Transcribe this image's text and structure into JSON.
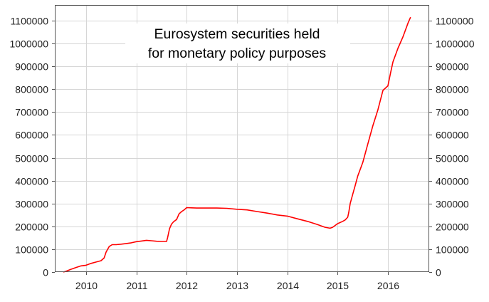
{
  "chart_data": {
    "type": "line",
    "title": [
      "Eurosystem securities held",
      "for monetary policy purposes"
    ],
    "xlabel": "",
    "ylabel": "",
    "xlim": [
      2009.38,
      2016.82
    ],
    "ylim": [
      0,
      1100000
    ],
    "x_ticks": [
      2010,
      2011,
      2012,
      2013,
      2014,
      2015,
      2016
    ],
    "y_ticks": [
      0,
      100000,
      200000,
      300000,
      400000,
      500000,
      600000,
      700000,
      800000,
      900000,
      1000000,
      1100000
    ],
    "grid": true,
    "line_color": "#ff0000",
    "series": [
      {
        "name": "Eurosystem securities held for monetary policy purposes",
        "x": [
          2009.55,
          2009.62,
          2009.7,
          2009.8,
          2009.9,
          2010.0,
          2010.1,
          2010.2,
          2010.3,
          2010.36,
          2010.4,
          2010.46,
          2010.52,
          2010.6,
          2010.7,
          2010.8,
          2010.9,
          2011.0,
          2011.1,
          2011.2,
          2011.3,
          2011.4,
          2011.5,
          2011.6,
          2011.62,
          2011.66,
          2011.7,
          2011.74,
          2011.8,
          2011.85,
          2011.9,
          2011.95,
          2012.0,
          2012.1,
          2012.2,
          2012.4,
          2012.6,
          2012.8,
          2013.0,
          2013.2,
          2013.4,
          2013.6,
          2013.8,
          2014.0,
          2014.2,
          2014.4,
          2014.6,
          2014.75,
          2014.85,
          2014.9,
          2015.0,
          2015.1,
          2015.15,
          2015.2,
          2015.22,
          2015.25,
          2015.3,
          2015.35,
          2015.4,
          2015.5,
          2015.6,
          2015.7,
          2015.8,
          2015.9,
          2016.0,
          2016.05,
          2016.1,
          2016.2,
          2016.3,
          2016.4,
          2016.45
        ],
        "values": [
          0,
          5000,
          12000,
          20000,
          27000,
          30000,
          38000,
          44000,
          50000,
          62000,
          88000,
          112000,
          120000,
          120000,
          122000,
          125000,
          128000,
          133000,
          136000,
          139000,
          137000,
          135000,
          134000,
          134000,
          150000,
          190000,
          210000,
          220000,
          230000,
          255000,
          265000,
          272000,
          282000,
          281000,
          280000,
          280000,
          280000,
          279000,
          275000,
          272000,
          265000,
          258000,
          250000,
          245000,
          233000,
          222000,
          208000,
          196000,
          192000,
          196000,
          212000,
          222000,
          228000,
          240000,
          260000,
          300000,
          340000,
          380000,
          420000,
          480000,
          560000,
          640000,
          710000,
          795000,
          815000,
          870000,
          920000,
          980000,
          1030000,
          1090000,
          1115000
        ]
      }
    ]
  }
}
